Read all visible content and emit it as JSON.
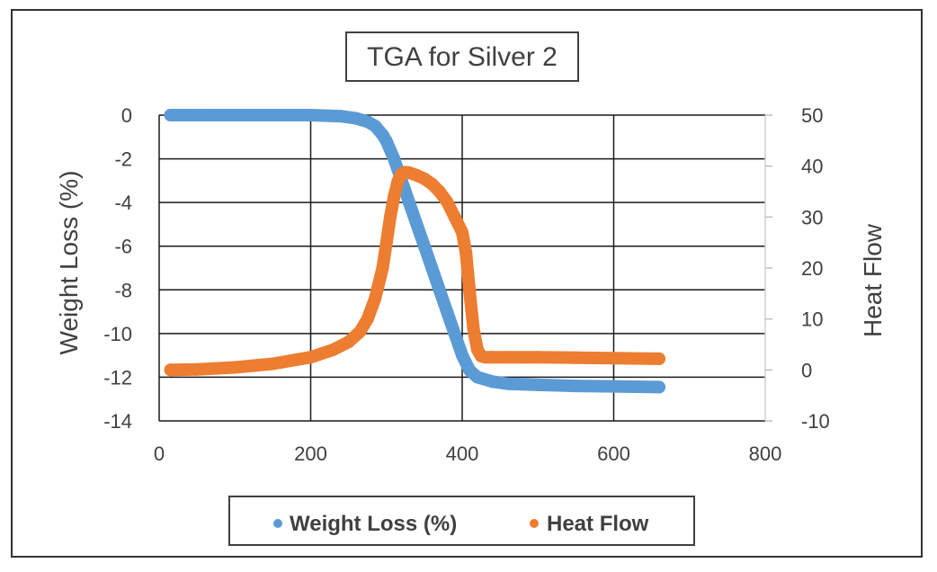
{
  "chart_data": {
    "type": "scatter",
    "title": "TGA for Silver 2",
    "xlabel": "",
    "ylabel": "Weight Loss (%)",
    "y2label": "Heat Flow",
    "xlim": [
      0,
      800
    ],
    "ylim": [
      -14,
      0
    ],
    "y2lim": [
      -10,
      50
    ],
    "x_ticks": [
      "0",
      "200",
      "400",
      "600",
      "800"
    ],
    "y_ticks": [
      "0",
      "-2",
      "-4",
      "-6",
      "-8",
      "-10",
      "-12",
      "-14"
    ],
    "y2_ticks": [
      "50",
      "40",
      "30",
      "20",
      "10",
      "0",
      "-10"
    ],
    "grid": true,
    "legend_position": "bottom",
    "series": [
      {
        "name": "Weight Loss (%)",
        "axis": "left",
        "color": "#5b9bd5",
        "x": [
          15,
          50,
          100,
          150,
          200,
          240,
          260,
          275,
          285,
          295,
          300,
          310,
          320,
          330,
          340,
          350,
          360,
          370,
          380,
          390,
          400,
          410,
          420,
          440,
          460,
          500,
          550,
          600,
          660
        ],
        "y": [
          0,
          0,
          0,
          0,
          0,
          -0.05,
          -0.15,
          -0.3,
          -0.5,
          -0.9,
          -1.2,
          -2.0,
          -3.0,
          -4.0,
          -5.0,
          -6.0,
          -7.0,
          -8.0,
          -9.0,
          -10.0,
          -11.0,
          -11.7,
          -12.0,
          -12.2,
          -12.3,
          -12.35,
          -12.4,
          -12.42,
          -12.45
        ]
      },
      {
        "name": "Heat Flow",
        "axis": "right",
        "color": "#ed7d31",
        "x": [
          15,
          50,
          100,
          150,
          200,
          230,
          250,
          265,
          275,
          285,
          295,
          300,
          305,
          310,
          315,
          320,
          325,
          330,
          340,
          350,
          360,
          370,
          380,
          390,
          400,
          405,
          410,
          415,
          420,
          425,
          430,
          440,
          460,
          500,
          550,
          600,
          660
        ],
        "y": [
          0,
          0.1,
          0.5,
          1.2,
          2.5,
          4,
          5.5,
          7.5,
          10,
          14,
          20,
          25,
          30,
          34,
          37,
          38.5,
          38.8,
          38.7,
          38.2,
          37.5,
          36.5,
          35,
          33,
          30,
          27,
          23,
          15,
          8,
          4,
          2.7,
          2.5,
          2.5,
          2.5,
          2.5,
          2.4,
          2.3,
          2.2
        ]
      }
    ]
  }
}
